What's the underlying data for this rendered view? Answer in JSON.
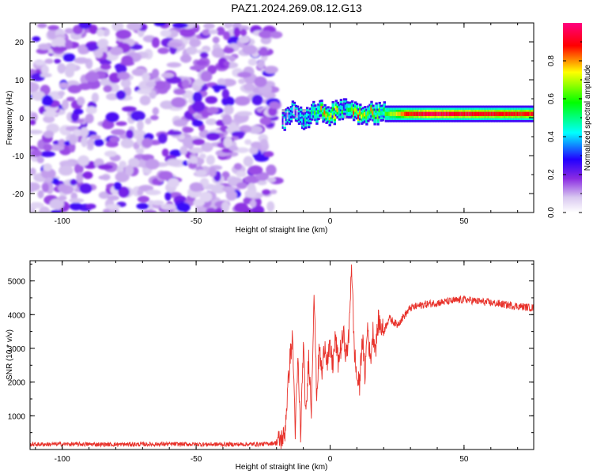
{
  "title": "PAZ1.2024.269.08.12.G13",
  "chart_data": [
    {
      "type": "heatmap",
      "xlabel": "Height of straight line (km)",
      "ylabel": "Frequency (Hz)",
      "xlim": [
        -112,
        76
      ],
      "ylim": [
        -25,
        25
      ],
      "xticks": [
        -100,
        -50,
        0,
        50
      ],
      "xtick_labels": [
        "-100",
        "-50",
        "0",
        "50"
      ],
      "yticks": [
        -20,
        -10,
        0,
        10,
        20
      ],
      "ytick_labels": [
        "-20",
        "-10",
        "0",
        "10",
        "20"
      ],
      "colorbar": {
        "label": "Normalized spectral amplitude",
        "range": [
          0,
          1
        ],
        "ticks": [
          0.0,
          0.2,
          0.4,
          0.6,
          0.8
        ],
        "tick_labels": [
          "0.0",
          "0.2",
          "0.4",
          "0.6",
          "0.8"
        ],
        "colors": [
          "#ffffff",
          "#d8c8f0",
          "#8a2be2",
          "#2200ff",
          "#00ffff",
          "#00ff00",
          "#ffff00",
          "#ff0000",
          "#ff0080"
        ]
      },
      "features": {
        "noise_region_x": [
          -112,
          -20
        ],
        "noise_amplitude_typical": 0.15,
        "signal_region_x": [
          -18,
          76
        ],
        "signal_frequency_hz": 1.0,
        "signal_points": [
          {
            "x": -18,
            "f": -1,
            "a": 0.15
          },
          {
            "x": -15,
            "f": 2,
            "a": 0.25
          },
          {
            "x": -10,
            "f": 0,
            "a": 0.3
          },
          {
            "x": -5,
            "f": 1.5,
            "a": 0.6
          },
          {
            "x": 0,
            "f": 1.0,
            "a": 0.75
          },
          {
            "x": 5,
            "f": 3,
            "a": 0.45
          },
          {
            "x": 10,
            "f": 1.2,
            "a": 0.8
          },
          {
            "x": 15,
            "f": 1.5,
            "a": 0.7
          },
          {
            "x": 20,
            "f": 1.0,
            "a": 0.6
          },
          {
            "x": 30,
            "f": 1.0,
            "a": 0.9
          },
          {
            "x": 40,
            "f": 1.0,
            "a": 0.95
          },
          {
            "x": 50,
            "f": 1.0,
            "a": 0.92
          },
          {
            "x": 60,
            "f": 1.0,
            "a": 0.9
          },
          {
            "x": 70,
            "f": 1.0,
            "a": 0.88
          }
        ]
      }
    },
    {
      "type": "line",
      "xlabel": "Height of straight line (km)",
      "ylabel": "SNR (10 * v/v)",
      "xlim": [
        -112,
        76
      ],
      "ylim": [
        0,
        5600
      ],
      "xticks": [
        -100,
        -50,
        0,
        50
      ],
      "xtick_labels": [
        "-100",
        "-50",
        "0",
        "50"
      ],
      "yticks": [
        1000,
        2000,
        3000,
        4000,
        5000
      ],
      "ytick_labels": [
        "1000",
        "2000",
        "3000",
        "4000",
        "5000"
      ],
      "color": "#e8322b",
      "series": [
        {
          "x": [
            -112,
            -100,
            -80,
            -60,
            -40,
            -25,
            -20,
            -17,
            -15,
            -14,
            -13,
            -12,
            -11,
            -10,
            -9,
            -8,
            -7,
            -6,
            -5,
            -4,
            -3,
            -2,
            -1,
            0,
            1,
            2,
            3,
            4,
            5,
            6,
            7,
            8,
            9,
            10,
            11,
            12,
            13,
            14,
            15,
            16,
            17,
            18,
            20,
            22,
            25,
            28,
            30,
            35,
            40,
            45,
            50,
            55,
            60,
            65,
            70,
            76
          ],
          "y": [
            150,
            160,
            150,
            160,
            150,
            160,
            200,
            400,
            2700,
            3300,
            600,
            2600,
            400,
            3100,
            900,
            2800,
            1200,
            4700,
            1600,
            3000,
            2200,
            3200,
            2600,
            3000,
            2500,
            3300,
            2600,
            3000,
            3400,
            2800,
            3300,
            5600,
            3000,
            2100,
            1900,
            3400,
            2200,
            3700,
            2600,
            3500,
            3000,
            3800,
            3500,
            3900,
            3700,
            4000,
            4200,
            4300,
            4350,
            4400,
            4450,
            4400,
            4350,
            4300,
            4250,
            4200
          ]
        }
      ]
    }
  ]
}
